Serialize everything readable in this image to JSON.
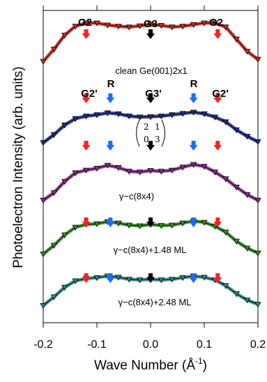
{
  "chart_data": {
    "type": "line",
    "xlabel": "Wave Number (Å",
    "xlabel_superscript": "-1",
    "xlabel_suffix": ")",
    "ylabel": "Photoelectron Intensity (arb. units)",
    "xlim": [
      -0.2,
      0.2
    ],
    "x_ticks": [
      -0.2,
      -0.1,
      0.0,
      0.1,
      0.2
    ],
    "x_tick_labels": [
      "-0.2",
      "-0.1",
      "0.0",
      "0.1",
      "0.2"
    ],
    "grid": false,
    "legend": "none",
    "marker_colors": {
      "G2": "#ff2020",
      "R": "#1a6cff",
      "G3": "#000000"
    },
    "peak_labels": {
      "G2": "G2",
      "G3": "G3",
      "G2_prime": "G2'",
      "R": "R",
      "G3_prime": "G3'"
    },
    "matrix": [
      [
        "2",
        "1"
      ],
      [
        "0",
        "3"
      ]
    ],
    "series": [
      {
        "name": "clean Ge(001)2x1",
        "color": "#d12a1c",
        "markers": [
          {
            "x": -0.12,
            "type": "G2"
          },
          {
            "x": 0.0,
            "type": "G3"
          },
          {
            "x": 0.125,
            "type": "G2"
          }
        ],
        "x": [
          -0.2,
          -0.18,
          -0.16,
          -0.14,
          -0.12,
          -0.1,
          -0.08,
          -0.06,
          -0.04,
          -0.02,
          0.0,
          0.02,
          0.04,
          0.06,
          0.08,
          0.1,
          0.12,
          0.14,
          0.16,
          0.18,
          0.2
        ],
        "y": [
          0.05,
          0.35,
          0.7,
          0.92,
          1.0,
          1.0,
          0.95,
          0.92,
          0.9,
          0.93,
          0.97,
          0.94,
          0.9,
          0.92,
          0.96,
          1.0,
          1.0,
          0.9,
          0.6,
          0.3,
          0.1
        ]
      },
      {
        "name": "",
        "color": "#1f2d8a",
        "markers": [
          {
            "x": -0.12,
            "type": "G2"
          },
          {
            "x": -0.075,
            "type": "R"
          },
          {
            "x": 0.0,
            "type": "G3"
          },
          {
            "x": 0.08,
            "type": "R"
          },
          {
            "x": 0.125,
            "type": "G2"
          }
        ],
        "x": [
          -0.2,
          -0.18,
          -0.16,
          -0.14,
          -0.12,
          -0.1,
          -0.08,
          -0.06,
          -0.04,
          -0.02,
          0.0,
          0.02,
          0.04,
          0.06,
          0.08,
          0.1,
          0.12,
          0.14,
          0.16,
          0.18,
          0.2
        ],
        "y": [
          0.05,
          0.3,
          0.6,
          0.8,
          0.88,
          0.92,
          0.98,
          0.95,
          0.88,
          0.85,
          0.86,
          0.88,
          0.92,
          0.96,
          1.0,
          0.95,
          0.85,
          0.7,
          0.45,
          0.25,
          0.08
        ]
      },
      {
        "name": "γ−c(8x4)",
        "color": "#8a2a8c",
        "markers": [
          {
            "x": -0.12,
            "type": "G2"
          },
          {
            "x": -0.075,
            "type": "R"
          },
          {
            "x": 0.0,
            "type": "G3"
          },
          {
            "x": 0.08,
            "type": "R"
          },
          {
            "x": 0.125,
            "type": "G2"
          }
        ],
        "x": [
          -0.2,
          -0.18,
          -0.16,
          -0.14,
          -0.12,
          -0.1,
          -0.08,
          -0.06,
          -0.04,
          -0.02,
          0.0,
          0.02,
          0.04,
          0.06,
          0.08,
          0.1,
          0.12,
          0.14,
          0.16,
          0.18,
          0.2
        ],
        "y": [
          0.05,
          0.25,
          0.55,
          0.78,
          0.85,
          0.9,
          0.98,
          0.92,
          0.82,
          0.8,
          0.84,
          0.82,
          0.85,
          0.93,
          1.0,
          0.95,
          0.8,
          0.62,
          0.4,
          0.2,
          0.05
        ]
      },
      {
        "name": "γ−c(8x4)+1.48 ML",
        "color": "#3a8a2a",
        "markers": [
          {
            "x": -0.12,
            "type": "G2"
          },
          {
            "x": -0.075,
            "type": "R"
          },
          {
            "x": 0.0,
            "type": "G3"
          },
          {
            "x": 0.08,
            "type": "R"
          },
          {
            "x": 0.125,
            "type": "G2"
          }
        ],
        "x": [
          -0.2,
          -0.18,
          -0.16,
          -0.14,
          -0.12,
          -0.1,
          -0.08,
          -0.06,
          -0.04,
          -0.02,
          0.0,
          0.02,
          0.04,
          0.06,
          0.08,
          0.1,
          0.12,
          0.14,
          0.16,
          0.18,
          0.2
        ],
        "y": [
          0.05,
          0.3,
          0.6,
          0.82,
          0.9,
          0.92,
          0.98,
          0.94,
          0.88,
          0.86,
          0.9,
          0.87,
          0.88,
          0.94,
          1.0,
          0.96,
          0.85,
          0.68,
          0.42,
          0.22,
          0.08
        ]
      },
      {
        "name": "γ−c(8x4)+2.48 ML",
        "color": "#2a8a86",
        "markers": [
          {
            "x": -0.12,
            "type": "G2"
          },
          {
            "x": -0.075,
            "type": "R"
          },
          {
            "x": 0.0,
            "type": "G3"
          },
          {
            "x": 0.08,
            "type": "R"
          },
          {
            "x": 0.125,
            "type": "G2"
          }
        ],
        "x": [
          -0.2,
          -0.18,
          -0.16,
          -0.14,
          -0.12,
          -0.1,
          -0.08,
          -0.06,
          -0.04,
          -0.02,
          0.0,
          0.02,
          0.04,
          0.06,
          0.08,
          0.1,
          0.12,
          0.14,
          0.16,
          0.18,
          0.2
        ],
        "y": [
          0.08,
          0.35,
          0.65,
          0.85,
          0.92,
          0.95,
          1.0,
          0.96,
          0.9,
          0.88,
          0.9,
          0.88,
          0.9,
          0.95,
          1.0,
          0.96,
          0.88,
          0.7,
          0.45,
          0.25,
          0.12
        ]
      }
    ]
  }
}
